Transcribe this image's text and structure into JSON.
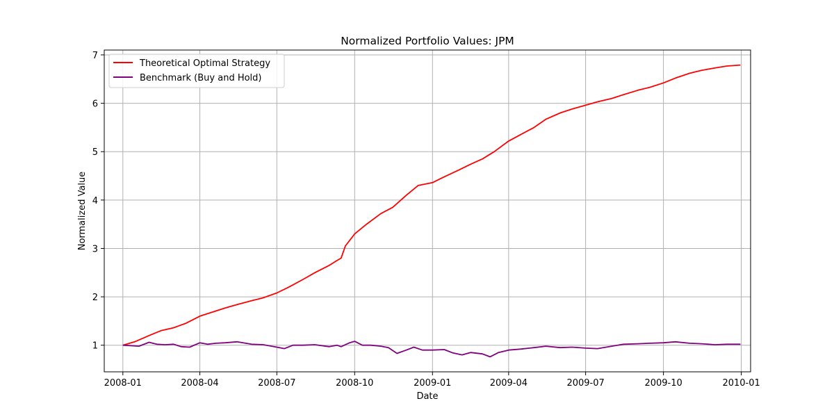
{
  "chart_data": {
    "type": "line",
    "title": "Normalized Portfolio Values: JPM",
    "xlabel": "Date",
    "ylabel": "Normalized Value",
    "x_range": [
      "2007-12-10",
      "2010-01-12"
    ],
    "ylim": [
      0.45,
      7.1
    ],
    "x_ticks": [
      "2008-01",
      "2008-04",
      "2008-07",
      "2008-10",
      "2009-01",
      "2009-04",
      "2009-07",
      "2009-10",
      "2010-01"
    ],
    "y_ticks": [
      1,
      2,
      3,
      4,
      5,
      6,
      7
    ],
    "grid": true,
    "legend_position": "upper-left",
    "series": [
      {
        "name": "Theoretical Optimal Strategy",
        "color": "#ff0000",
        "points": [
          [
            "2008-01-01",
            1.0
          ],
          [
            "2008-01-15",
            1.07
          ],
          [
            "2008-02-01",
            1.2
          ],
          [
            "2008-02-15",
            1.3
          ],
          [
            "2008-03-01",
            1.36
          ],
          [
            "2008-03-15",
            1.45
          ],
          [
            "2008-04-01",
            1.6
          ],
          [
            "2008-04-15",
            1.68
          ],
          [
            "2008-05-01",
            1.77
          ],
          [
            "2008-05-15",
            1.84
          ],
          [
            "2008-06-01",
            1.92
          ],
          [
            "2008-06-15",
            1.98
          ],
          [
            "2008-07-01",
            2.08
          ],
          [
            "2008-07-15",
            2.2
          ],
          [
            "2008-08-01",
            2.36
          ],
          [
            "2008-08-15",
            2.5
          ],
          [
            "2008-09-01",
            2.65
          ],
          [
            "2008-09-10",
            2.75
          ],
          [
            "2008-09-15",
            2.8
          ],
          [
            "2008-09-20",
            3.05
          ],
          [
            "2008-10-01",
            3.3
          ],
          [
            "2008-10-15",
            3.5
          ],
          [
            "2008-11-01",
            3.72
          ],
          [
            "2008-11-15",
            3.85
          ],
          [
            "2008-12-01",
            4.1
          ],
          [
            "2008-12-15",
            4.3
          ],
          [
            "2009-01-01",
            4.36
          ],
          [
            "2009-01-15",
            4.48
          ],
          [
            "2009-02-01",
            4.62
          ],
          [
            "2009-02-15",
            4.74
          ],
          [
            "2009-03-01",
            4.85
          ],
          [
            "2009-03-15",
            5.0
          ],
          [
            "2009-04-01",
            5.22
          ],
          [
            "2009-04-15",
            5.35
          ],
          [
            "2009-05-01",
            5.5
          ],
          [
            "2009-05-15",
            5.67
          ],
          [
            "2009-06-01",
            5.8
          ],
          [
            "2009-06-15",
            5.88
          ],
          [
            "2009-07-01",
            5.96
          ],
          [
            "2009-07-15",
            6.03
          ],
          [
            "2009-08-01",
            6.1
          ],
          [
            "2009-08-15",
            6.18
          ],
          [
            "2009-09-01",
            6.27
          ],
          [
            "2009-09-15",
            6.33
          ],
          [
            "2009-10-01",
            6.42
          ],
          [
            "2009-10-15",
            6.52
          ],
          [
            "2009-11-01",
            6.62
          ],
          [
            "2009-11-15",
            6.68
          ],
          [
            "2009-12-01",
            6.73
          ],
          [
            "2009-12-15",
            6.77
          ],
          [
            "2009-12-31",
            6.79
          ]
        ]
      },
      {
        "name": "Benchmark (Buy and Hold)",
        "color": "#800080",
        "points": [
          [
            "2008-01-01",
            1.0
          ],
          [
            "2008-01-10",
            0.99
          ],
          [
            "2008-01-20",
            0.98
          ],
          [
            "2008-02-01",
            1.06
          ],
          [
            "2008-02-10",
            1.02
          ],
          [
            "2008-02-20",
            1.01
          ],
          [
            "2008-03-01",
            1.02
          ],
          [
            "2008-03-10",
            0.97
          ],
          [
            "2008-03-20",
            0.96
          ],
          [
            "2008-04-01",
            1.05
          ],
          [
            "2008-04-10",
            1.02
          ],
          [
            "2008-04-20",
            1.04
          ],
          [
            "2008-05-01",
            1.05
          ],
          [
            "2008-05-15",
            1.07
          ],
          [
            "2008-06-01",
            1.02
          ],
          [
            "2008-06-15",
            1.01
          ],
          [
            "2008-07-01",
            0.96
          ],
          [
            "2008-07-10",
            0.93
          ],
          [
            "2008-07-20",
            1.0
          ],
          [
            "2008-08-01",
            1.0
          ],
          [
            "2008-08-15",
            1.01
          ],
          [
            "2008-09-01",
            0.97
          ],
          [
            "2008-09-10",
            1.0
          ],
          [
            "2008-09-15",
            0.97
          ],
          [
            "2008-09-25",
            1.05
          ],
          [
            "2008-10-01",
            1.08
          ],
          [
            "2008-10-10",
            1.0
          ],
          [
            "2008-10-20",
            1.0
          ],
          [
            "2008-11-01",
            0.98
          ],
          [
            "2008-11-10",
            0.95
          ],
          [
            "2008-11-20",
            0.83
          ],
          [
            "2008-12-01",
            0.9
          ],
          [
            "2008-12-10",
            0.96
          ],
          [
            "2008-12-20",
            0.9
          ],
          [
            "2009-01-01",
            0.9
          ],
          [
            "2009-01-15",
            0.91
          ],
          [
            "2009-01-25",
            0.84
          ],
          [
            "2009-02-05",
            0.8
          ],
          [
            "2009-02-15",
            0.85
          ],
          [
            "2009-03-01",
            0.82
          ],
          [
            "2009-03-10",
            0.76
          ],
          [
            "2009-03-20",
            0.85
          ],
          [
            "2009-04-01",
            0.9
          ],
          [
            "2009-04-15",
            0.92
          ],
          [
            "2009-05-01",
            0.95
          ],
          [
            "2009-05-15",
            0.98
          ],
          [
            "2009-06-01",
            0.95
          ],
          [
            "2009-06-15",
            0.96
          ],
          [
            "2009-07-01",
            0.94
          ],
          [
            "2009-07-15",
            0.93
          ],
          [
            "2009-08-01",
            0.98
          ],
          [
            "2009-08-15",
            1.02
          ],
          [
            "2009-09-01",
            1.03
          ],
          [
            "2009-09-15",
            1.04
          ],
          [
            "2009-10-01",
            1.05
          ],
          [
            "2009-10-15",
            1.07
          ],
          [
            "2009-11-01",
            1.04
          ],
          [
            "2009-11-15",
            1.03
          ],
          [
            "2009-12-01",
            1.01
          ],
          [
            "2009-12-15",
            1.02
          ],
          [
            "2009-12-31",
            1.02
          ]
        ]
      }
    ]
  }
}
